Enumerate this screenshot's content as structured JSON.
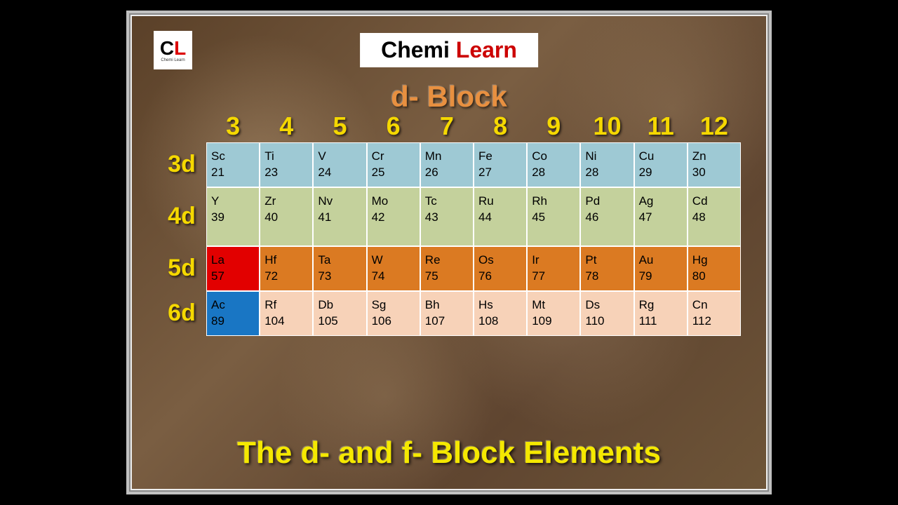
{
  "logo": {
    "letter1": "C",
    "letter2": "L",
    "sub": "Chemi Learn"
  },
  "banner": {
    "part1": "Chemi ",
    "part2": "Learn"
  },
  "title": "d- Block",
  "footer": "The d- and f- Block Elements",
  "columns": [
    "3",
    "4",
    "5",
    "6",
    "7",
    "8",
    "9",
    "10",
    "11",
    "12"
  ],
  "rowLabels": [
    "3d",
    "4d",
    "5d",
    "6d"
  ],
  "rowColors": [
    "#9ec9d4",
    "#c4d19c",
    "#db7a22",
    "#f7d2b8"
  ],
  "specialCells": {
    "2-0": "#e20000",
    "3-0": "#1976c4"
  },
  "rowHeights": [
    "60px",
    "84px",
    "64px",
    "64px"
  ],
  "rows": [
    [
      [
        "Sc",
        "21"
      ],
      [
        "Ti",
        "23"
      ],
      [
        "V",
        "24"
      ],
      [
        "Cr",
        "25"
      ],
      [
        "Mn",
        "26"
      ],
      [
        "Fe",
        "27"
      ],
      [
        "Co",
        "28"
      ],
      [
        "Ni",
        "28"
      ],
      [
        "Cu",
        "29"
      ],
      [
        "Zn",
        "30"
      ]
    ],
    [
      [
        "Y",
        "39"
      ],
      [
        "Zr",
        "40"
      ],
      [
        "Nv",
        "41"
      ],
      [
        "Mo",
        "42"
      ],
      [
        "Tc",
        "43"
      ],
      [
        "Ru",
        "44"
      ],
      [
        "Rh",
        "45"
      ],
      [
        "Pd",
        "46"
      ],
      [
        "Ag",
        "47"
      ],
      [
        "Cd",
        "48"
      ]
    ],
    [
      [
        "La",
        "57"
      ],
      [
        "Hf",
        "72"
      ],
      [
        "Ta",
        "73"
      ],
      [
        "W",
        "74"
      ],
      [
        "Re",
        "75"
      ],
      [
        "Os",
        "76"
      ],
      [
        "Ir",
        "77"
      ],
      [
        "Pt",
        "78"
      ],
      [
        "Au",
        "79"
      ],
      [
        "Hg",
        "80"
      ]
    ],
    [
      [
        "Ac",
        "89"
      ],
      [
        "Rf",
        "104"
      ],
      [
        "Db",
        "105"
      ],
      [
        "Sg",
        "106"
      ],
      [
        "Bh",
        "107"
      ],
      [
        "Hs",
        "108"
      ],
      [
        "Mt",
        "109"
      ],
      [
        "Ds",
        "110"
      ],
      [
        "Rg",
        "111"
      ],
      [
        "Cn",
        "112"
      ]
    ]
  ]
}
